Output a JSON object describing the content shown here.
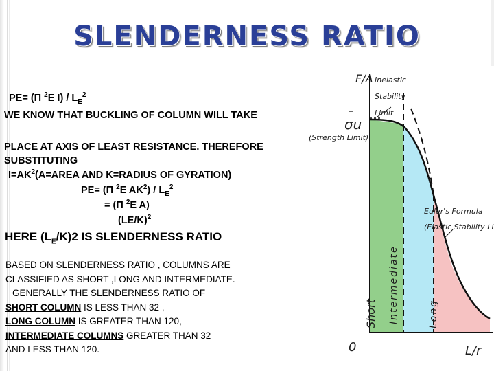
{
  "title": "SLENDERNESS RATIO",
  "lines": {
    "pe_formula": {
      "a": "PE= (Π ",
      "b": "2",
      "c": "E I) / L",
      "d": "E",
      "e": "2"
    },
    "buckling_1": "WE KNOW THAT BUCKLING OF COLUMN WILL TAKE",
    "buckling_2": "PLACE AT AXIS OF LEAST RESISTANCE. THEREFORE",
    "substituting": "SUBSTITUTING",
    "i_eq": {
      "a": "I=AK",
      "b": "2",
      "c": "(A=AREA AND K=RADIUS OF GYRATION)"
    },
    "pe2": {
      "a": "PE= (Π ",
      "b": "2",
      "c": "E AK",
      "d": "2",
      "e": ") / L",
      "f": "E",
      "g": "2"
    },
    "eq3": {
      "a": "= (Π ",
      "b": "2",
      "c": "E A)"
    },
    "eq4": {
      "a": "(LE/K)",
      "b": "2"
    },
    "heading": {
      "a": "HERE (L",
      "b": "E",
      "c": "/K)2  IS SLENDERNESS RATIO"
    }
  },
  "paragraph": {
    "l1": "BASED ON SLENDERNESS RATIO , COLUMNS ARE",
    "l2": "CLASSIFIED AS SHORT ,LONG AND INTERMEDIATE.",
    "l3": "GENERALLY THE  SLENDERNESS RATIO  OF",
    "short_label": "SHORT COLUMN",
    "short_rest": " IS LESS THAN 32 ,",
    "long_label": "LONG COLUMN",
    "long_rest": " IS GREATER THAN 120,",
    "inter_label": "INTERMEDIATE COLUMNS",
    "inter_rest": " GREATER THAN 32",
    "l7": "AND LESS THAN 120."
  },
  "chart_data": {
    "type": "area",
    "y_axis_label": "F/A",
    "x_axis_label": "L/r",
    "origin_label": "0",
    "sigma_label": "σu",
    "strength_limit_label": "(Strength Limit)",
    "inelastic_label": [
      "Inelastic",
      "Stability",
      "Limit"
    ],
    "euler_label": [
      "Euler's Formula",
      "(Elastic Stability Limit)"
    ],
    "regions": [
      {
        "name": "Short",
        "color": "#93cf8b"
      },
      {
        "name": "Intermediate",
        "color": "#b5e8f5"
      },
      {
        "name": "Long",
        "color": "#f6c2c2"
      }
    ]
  }
}
